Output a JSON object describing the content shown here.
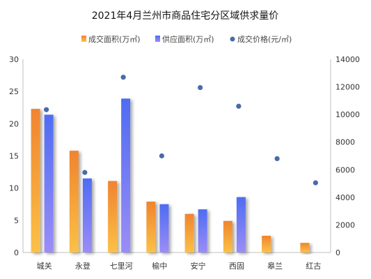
{
  "chart_data": {
    "type": "bar",
    "title": "2021年4月兰州市商品住宅分区域供求量价",
    "categories": [
      "城关",
      "永登",
      "七里河",
      "榆中",
      "安宁",
      "西固",
      "皋兰",
      "红古"
    ],
    "series": [
      {
        "name": "成交面积(万㎡)",
        "kind": "bar",
        "axis": "left",
        "color": "#f0842f",
        "color_end": "#fbc146",
        "values": [
          22.3,
          15.8,
          11.1,
          7.9,
          6.0,
          4.9,
          2.6,
          1.5
        ]
      },
      {
        "name": "供应面积(万㎡)",
        "kind": "bar",
        "axis": "left",
        "color": "#4f6cf2",
        "color_end": "#9b8df7",
        "values": [
          21.4,
          11.5,
          23.9,
          7.5,
          6.7,
          8.6,
          0,
          0
        ]
      },
      {
        "name": "成交价格(元/㎡)",
        "kind": "scatter",
        "axis": "right",
        "color": "#4a6aa8",
        "values": [
          10350,
          5800,
          12700,
          7000,
          11950,
          10600,
          6800,
          5050
        ]
      }
    ],
    "y_left": {
      "min": 0,
      "max": 30,
      "ticks": [
        "0",
        "5",
        "10",
        "15",
        "20",
        "25",
        "30"
      ]
    },
    "y_right": {
      "min": 0,
      "max": 14000,
      "ticks": [
        "0",
        "2000",
        "4000",
        "6000",
        "8000",
        "10000",
        "12000",
        "14000"
      ]
    },
    "legend_position": "top-center",
    "grid": false
  }
}
